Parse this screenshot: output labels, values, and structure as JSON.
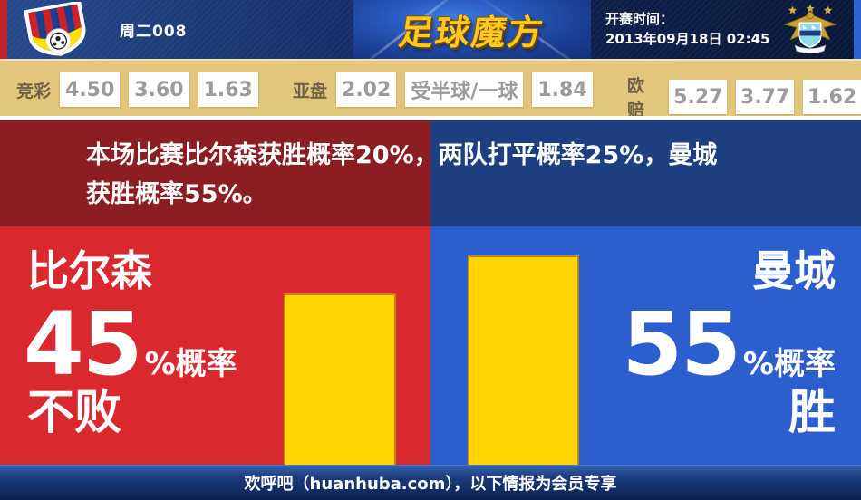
{
  "header": {
    "match_code": "周二008",
    "brand_logo_text": "足球魔方",
    "kickoff_label": "开赛时间：",
    "kickoff_datetime": "2013年09月18日 02:45",
    "home_crest": "fc-viktoria-plzen-crest",
    "away_crest": "manchester-city-crest"
  },
  "odds_bar": {
    "groups": [
      {
        "label": "竞彩",
        "values": [
          "4.50",
          "3.60",
          "1.63"
        ]
      },
      {
        "label": "亚盘",
        "values": [
          "2.02",
          "受半球/一球",
          "1.84"
        ]
      },
      {
        "label": "欧赔",
        "values": [
          "5.27",
          "3.77",
          "1.62"
        ]
      }
    ]
  },
  "summary": {
    "line1": "本场比赛比尔森获胜概率20%，两队打平概率25%，曼城",
    "line2": "获胜概率55%。"
  },
  "home_panel": {
    "team": "比尔森",
    "percent": "45",
    "percent_suffix": "%概率",
    "outcome": "不败",
    "bar_percent": 45
  },
  "away_panel": {
    "team": "曼城",
    "percent": "55",
    "percent_suffix": "%概率",
    "outcome": "胜",
    "bar_percent": 55
  },
  "chart_data": {
    "type": "bar",
    "categories": [
      "比尔森不败",
      "曼城胜"
    ],
    "values": [
      45,
      55
    ],
    "unit": "%",
    "title": "本场比赛比尔森获胜概率20%，两队打平概率25%，曼城获胜概率55%。",
    "win_probabilities": {
      "比尔森胜": 20,
      "平局": 25,
      "曼城胜": 55
    },
    "legend_position": "none",
    "grid": false,
    "bar_color": "#ffd400"
  },
  "footer": {
    "text": "欢呼吧（huanhuba.com），以下情报为会员专享"
  },
  "colors": {
    "header_navy": "#122c63",
    "edge_left_red": "#c0232b",
    "edge_right_blue": "#2c63cf",
    "odds_bar_tan": "#e2c67c",
    "odds_value_gray": "#9b9b9b",
    "home_dark": "#8c1d22",
    "home_bright": "#da282f",
    "away_dark": "#1e3f82",
    "away_bright": "#2c5ecd",
    "bar_yellow": "#ffd400",
    "brand_gold": "#ffc91f"
  }
}
